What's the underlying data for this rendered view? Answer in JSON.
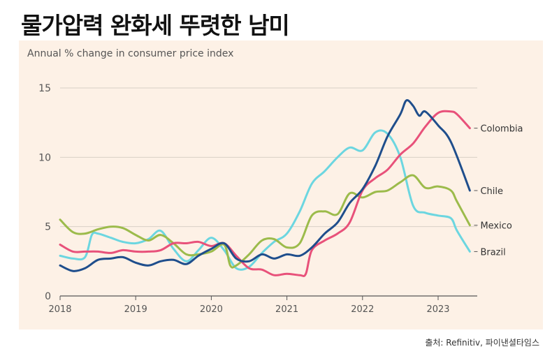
{
  "headline": "물가압력 완화세 뚜렷한 남미",
  "source": "출처: Refinitiv, 파이낸셜타임스",
  "chart_data": {
    "type": "line",
    "title": "",
    "subtitle": "Annual % change in consumer price index",
    "xlabel": "",
    "ylabel": "",
    "xlim": [
      2018,
      2023.5
    ],
    "ylim": [
      0,
      15
    ],
    "x_ticks": [
      "2018",
      "2019",
      "2020",
      "2021",
      "2022",
      "2023"
    ],
    "y_ticks": [
      "0",
      "5",
      "10",
      "15"
    ],
    "grid": true,
    "legend": "line-end labels",
    "series": [
      {
        "name": "Colombia",
        "color": "#e8517a",
        "x": [
          2018,
          2018.17,
          2018.33,
          2018.5,
          2018.67,
          2018.83,
          2019,
          2019.17,
          2019.33,
          2019.5,
          2019.67,
          2019.83,
          2020,
          2020.17,
          2020.33,
          2020.5,
          2020.67,
          2020.83,
          2021,
          2021.17,
          2021.25,
          2021.33,
          2021.5,
          2021.67,
          2021.83,
          2022,
          2022.17,
          2022.33,
          2022.5,
          2022.67,
          2022.83,
          2023,
          2023.17,
          2023.25,
          2023.42
        ],
        "values": [
          3.7,
          3.2,
          3.2,
          3.2,
          3.1,
          3.3,
          3.2,
          3.2,
          3.3,
          3.8,
          3.8,
          3.9,
          3.6,
          3.8,
          2.9,
          2.0,
          1.9,
          1.5,
          1.6,
          1.5,
          1.6,
          3.3,
          4.0,
          4.5,
          5.3,
          7.6,
          8.5,
          9.1,
          10.2,
          11.0,
          12.2,
          13.2,
          13.3,
          13.1,
          12.1
        ]
      },
      {
        "name": "Chile",
        "color": "#1f4e8c",
        "x": [
          2018,
          2018.17,
          2018.33,
          2018.5,
          2018.67,
          2018.83,
          2019,
          2019.17,
          2019.33,
          2019.5,
          2019.67,
          2019.83,
          2020,
          2020.17,
          2020.33,
          2020.5,
          2020.67,
          2020.83,
          2021,
          2021.17,
          2021.33,
          2021.5,
          2021.67,
          2021.83,
          2022,
          2022.17,
          2022.33,
          2022.5,
          2022.58,
          2022.67,
          2022.75,
          2022.83,
          2023,
          2023.17,
          2023.42
        ],
        "values": [
          2.2,
          1.8,
          2.0,
          2.6,
          2.7,
          2.8,
          2.4,
          2.2,
          2.5,
          2.6,
          2.3,
          2.9,
          3.4,
          3.8,
          2.7,
          2.5,
          3.0,
          2.7,
          3.0,
          2.9,
          3.5,
          4.5,
          5.3,
          6.7,
          7.7,
          9.4,
          11.5,
          13.1,
          14.1,
          13.7,
          13.0,
          13.3,
          12.3,
          11.1,
          7.6
        ]
      },
      {
        "name": "Mexico",
        "color": "#9cbb4b",
        "x": [
          2018,
          2018.17,
          2018.33,
          2018.5,
          2018.67,
          2018.83,
          2019,
          2019.17,
          2019.33,
          2019.5,
          2019.67,
          2019.83,
          2020,
          2020.17,
          2020.25,
          2020.33,
          2020.5,
          2020.67,
          2020.83,
          2021,
          2021.17,
          2021.33,
          2021.5,
          2021.67,
          2021.83,
          2022,
          2022.17,
          2022.33,
          2022.5,
          2022.67,
          2022.83,
          2023,
          2023.17,
          2023.25,
          2023.42
        ],
        "values": [
          5.5,
          4.6,
          4.5,
          4.8,
          5.0,
          4.9,
          4.4,
          4.0,
          4.4,
          3.8,
          3.0,
          3.0,
          3.2,
          3.7,
          2.2,
          2.2,
          3.0,
          4.0,
          4.1,
          3.5,
          3.8,
          5.8,
          6.1,
          5.9,
          7.4,
          7.1,
          7.5,
          7.6,
          8.2,
          8.7,
          7.8,
          7.9,
          7.6,
          6.8,
          5.1
        ]
      },
      {
        "name": "Brazil",
        "color": "#6cd6e0",
        "x": [
          2018,
          2018.17,
          2018.33,
          2018.42,
          2018.5,
          2018.67,
          2018.83,
          2019,
          2019.17,
          2019.33,
          2019.5,
          2019.67,
          2019.83,
          2020,
          2020.17,
          2020.33,
          2020.5,
          2020.67,
          2020.83,
          2021,
          2021.17,
          2021.33,
          2021.5,
          2021.67,
          2021.83,
          2022,
          2022.17,
          2022.33,
          2022.5,
          2022.67,
          2022.83,
          2023,
          2023.17,
          2023.25,
          2023.42
        ],
        "values": [
          2.9,
          2.7,
          2.8,
          4.4,
          4.5,
          4.2,
          3.9,
          3.8,
          4.1,
          4.7,
          3.4,
          2.5,
          3.3,
          4.2,
          3.3,
          2.0,
          2.1,
          3.1,
          3.9,
          4.5,
          6.1,
          8.1,
          9.0,
          10.0,
          10.7,
          10.5,
          11.8,
          11.7,
          10.0,
          6.5,
          6.0,
          5.8,
          5.6,
          4.7,
          3.2
        ]
      }
    ]
  }
}
